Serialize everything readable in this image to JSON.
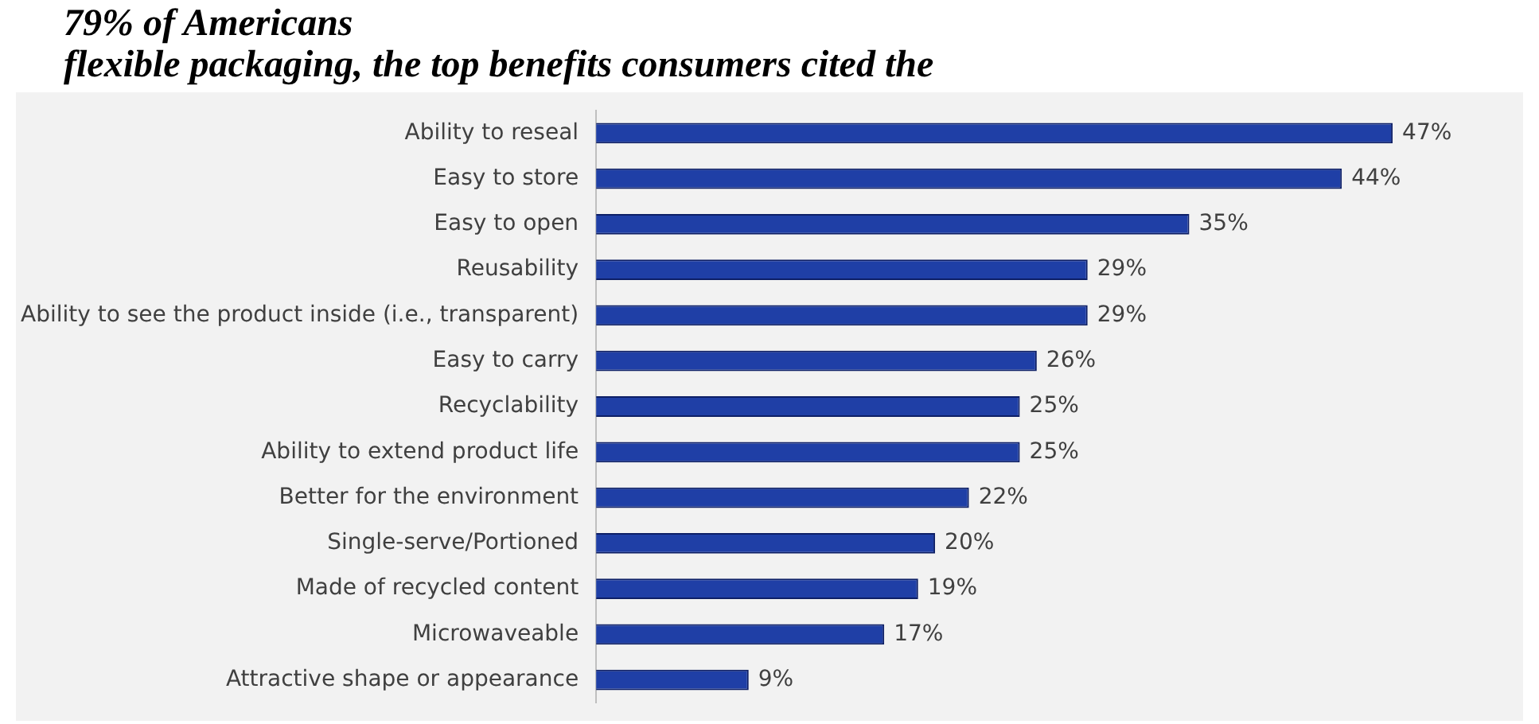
{
  "chart_data": {
    "type": "bar",
    "orientation": "horizontal",
    "title": "79% of Americans",
    "subtitle": "flexible packaging, the top benefits consumers cited the",
    "categories": [
      "Ability to reseal",
      "Easy to store",
      "Easy to open",
      "Reusability",
      "Ability to see the product inside (i.e., transparent)",
      "Easy to carry",
      "Recyclability",
      "Ability to extend product life",
      "Better for the environment",
      "Single-serve/Portioned",
      "Made of recycled content",
      "Microwaveable",
      "Attractive shape or appearance"
    ],
    "values": [
      47,
      44,
      35,
      29,
      29,
      26,
      25,
      25,
      22,
      20,
      19,
      17,
      9
    ],
    "value_labels": [
      "47%",
      "44%",
      "35%",
      "29%",
      "29%",
      "26%",
      "25%",
      "25%",
      "22%",
      "20%",
      "19%",
      "17%",
      "9%"
    ],
    "color": "#1f3fa6",
    "legend": false
  }
}
